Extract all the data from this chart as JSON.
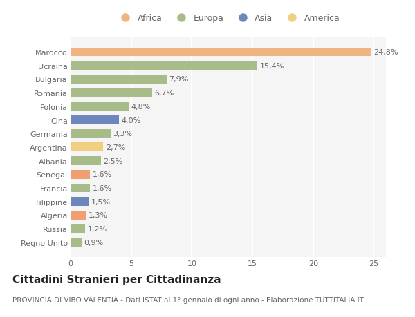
{
  "countries": [
    "Marocco",
    "Ucraina",
    "Bulgaria",
    "Romania",
    "Polonia",
    "Cina",
    "Germania",
    "Argentina",
    "Albania",
    "Senegal",
    "Francia",
    "Filippine",
    "Algeria",
    "Russia",
    "Regno Unito"
  ],
  "values": [
    24.8,
    15.4,
    7.9,
    6.7,
    4.8,
    4.0,
    3.3,
    2.7,
    2.5,
    1.6,
    1.6,
    1.5,
    1.3,
    1.2,
    0.9
  ],
  "labels": [
    "24,8%",
    "15,4%",
    "7,9%",
    "6,7%",
    "4,8%",
    "4,0%",
    "3,3%",
    "2,7%",
    "2,5%",
    "1,6%",
    "1,6%",
    "1,5%",
    "1,3%",
    "1,2%",
    "0,9%"
  ],
  "colors": [
    "#f0b482",
    "#a8bc8a",
    "#a8bc8a",
    "#a8bc8a",
    "#a8bc8a",
    "#6b87bc",
    "#a8bc8a",
    "#f0d080",
    "#a8bc8a",
    "#f0a070",
    "#a8bc8a",
    "#6b87bc",
    "#f0a070",
    "#a8bc8a",
    "#a8bc8a"
  ],
  "legend": [
    {
      "label": "Africa",
      "color": "#f0b482"
    },
    {
      "label": "Europa",
      "color": "#a8bc8a"
    },
    {
      "label": "Asia",
      "color": "#6b87bc"
    },
    {
      "label": "America",
      "color": "#f0d080"
    }
  ],
  "title": "Cittadini Stranieri per Cittadinanza",
  "subtitle": "PROVINCIA DI VIBO VALENTIA - Dati ISTAT al 1° gennaio di ogni anno - Elaborazione TUTTITALIA.IT",
  "xlim": [
    0,
    26
  ],
  "xticks": [
    0,
    5,
    10,
    15,
    20,
    25
  ],
  "bg_color": "#ffffff",
  "plot_bg_color": "#f5f5f5",
  "grid_color": "#ffffff",
  "bar_height": 0.65,
  "label_fontsize": 8.0,
  "tick_fontsize": 8.0,
  "title_fontsize": 11,
  "subtitle_fontsize": 7.5
}
